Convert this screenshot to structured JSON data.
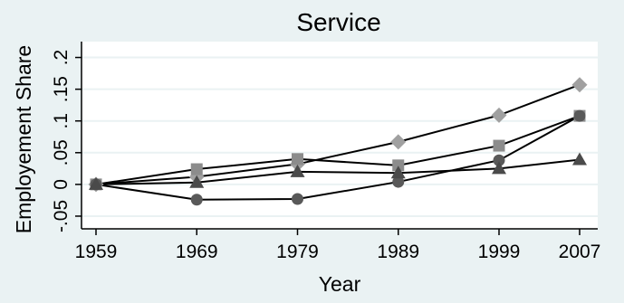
{
  "chart_data": {
    "type": "line",
    "title": "Service",
    "xlabel": "Year",
    "ylabel": "Employement Share",
    "x": [
      1959,
      1969,
      1979,
      1989,
      1999,
      2007
    ],
    "x_tick_labels": [
      "1959",
      "1969",
      "1979",
      "1989",
      "1999",
      "2007"
    ],
    "y_ticks": [
      -0.05,
      0,
      0.05,
      0.1,
      0.15,
      0.2
    ],
    "y_tick_labels": [
      "-.05",
      "0",
      ".05",
      ".1",
      ".15",
      ".2"
    ],
    "ylim": [
      -0.07,
      0.225
    ],
    "grid": true,
    "legend": "none",
    "series": [
      {
        "marker": "diamond",
        "color": "#a0a0a0",
        "values": [
          0,
          0.012,
          0.032,
          0.067,
          0.109,
          0.157
        ]
      },
      {
        "marker": "square",
        "color": "#8c8c8c",
        "values": [
          0,
          0.024,
          0.04,
          0.03,
          0.061,
          0.108
        ]
      },
      {
        "marker": "circle",
        "color": "#595959",
        "values": [
          0,
          -0.024,
          -0.023,
          0.004,
          0.038,
          0.108
        ]
      },
      {
        "marker": "triangle",
        "color": "#4a4a4a",
        "values": [
          0,
          0.003,
          0.02,
          0.018,
          0.025,
          0.039
        ]
      }
    ],
    "colors": {
      "background": "#eaf2f3",
      "plot_area": "#ffffff",
      "gridline": "#eaf2f3",
      "line": "#000000"
    }
  }
}
